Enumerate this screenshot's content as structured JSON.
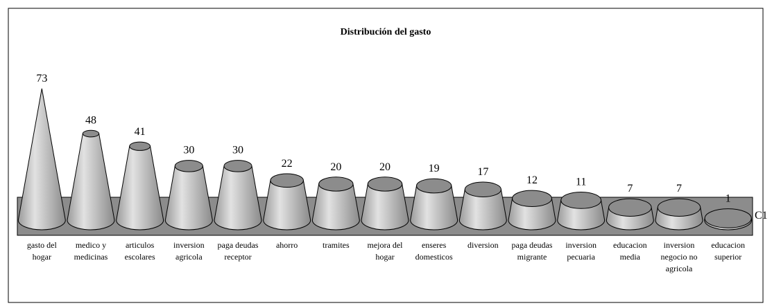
{
  "chart_data": {
    "type": "bar",
    "title": "Distribución del gasto",
    "categories": [
      "gasto del hogar",
      "medico y medicinas",
      "articulos escolares",
      "inversion agricola",
      "paga deudas receptor",
      "ahorro",
      "tramites",
      "mejora del hogar",
      "enseres domesticos",
      "diversion",
      "paga deudas migrante",
      "inversion pecuaria",
      "educacion media",
      "inversion negocio no agricola",
      "educacion superior"
    ],
    "series": [
      {
        "name": "C1",
        "color": "#c0c0c0",
        "values": [
          73,
          48,
          41,
          30,
          30,
          22,
          20,
          20,
          19,
          17,
          12,
          11,
          7,
          7,
          1
        ]
      }
    ]
  }
}
